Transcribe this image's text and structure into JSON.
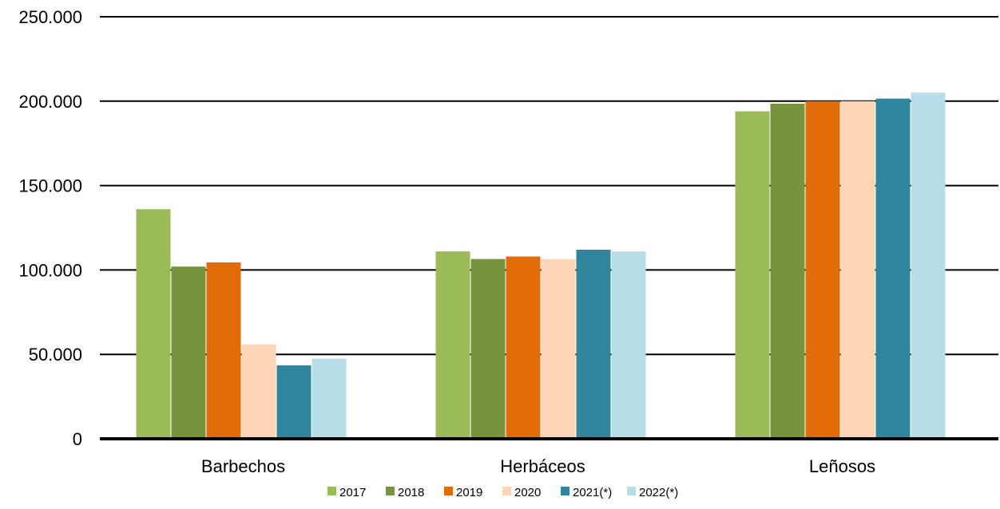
{
  "chart_data": {
    "type": "bar",
    "title": "",
    "xlabel": "",
    "ylabel": "",
    "categories": [
      "Barbechos",
      "Herbáceos",
      "Leñosos"
    ],
    "ylim": [
      0,
      250000
    ],
    "yticks": [
      0,
      50000,
      100000,
      150000,
      200000,
      250000
    ],
    "ytick_labels": [
      "0",
      "50.000",
      "100.000",
      "150.000",
      "200.000",
      "250.000"
    ],
    "grid": true,
    "legend_position": "bottom",
    "series": [
      {
        "name": "2017",
        "color": "#9BBB59",
        "values": [
          136000,
          111000,
          194000
        ]
      },
      {
        "name": "2018",
        "color": "#77933C",
        "values": [
          102000,
          106500,
          198500
        ]
      },
      {
        "name": "2019",
        "color": "#E36C0A",
        "values": [
          104500,
          108000,
          200000
        ]
      },
      {
        "name": "2020",
        "color": "#FBD5B5",
        "values": [
          56000,
          106500,
          200000
        ]
      },
      {
        "name": "2021(*)",
        "color": "#31859C",
        "values": [
          43500,
          112000,
          201500
        ]
      },
      {
        "name": "2022(*)",
        "color": "#B7DEE8",
        "values": [
          47500,
          111000,
          205000
        ]
      }
    ]
  }
}
